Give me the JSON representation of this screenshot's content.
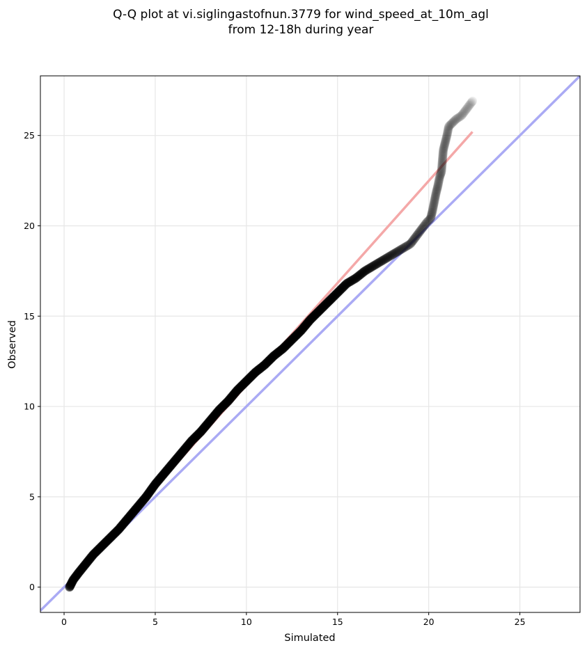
{
  "chart_data": {
    "type": "scatter",
    "title_lines": [
      "Q-Q plot at vi.siglingastofnun.3779 for wind_speed_at_10m_agl",
      "from 12-18h during year"
    ],
    "xlabel": "Simulated",
    "ylabel": "Observed",
    "xlim": [
      -1.3,
      28.3
    ],
    "ylim": [
      -1.4,
      28.3
    ],
    "xticks": [
      0,
      5,
      10,
      15,
      20,
      25
    ],
    "yticks": [
      0,
      5,
      10,
      15,
      20,
      25
    ],
    "xtick_labels": [
      "0",
      "5",
      "10",
      "15",
      "20",
      "25"
    ],
    "ytick_labels": [
      "0",
      "5",
      "10",
      "15",
      "20",
      "25"
    ],
    "grid": true,
    "reference_line": {
      "from": [
        -1.3,
        -1.3
      ],
      "to": [
        28.3,
        28.3
      ],
      "color": "#aaaaf4"
    },
    "fit_line": {
      "from": [
        0.2,
        0.1
      ],
      "to": [
        22.4,
        25.2
      ],
      "color": "#f4a8a8"
    },
    "quantiles": {
      "x": [
        0.3,
        0.35,
        0.5,
        0.8,
        1.2,
        1.6,
        2.0,
        2.5,
        3.0,
        3.5,
        4.0,
        4.5,
        5.0,
        5.5,
        6.0,
        6.5,
        7.0,
        7.5,
        8.0,
        8.5,
        9.0,
        9.5,
        10.0,
        10.5,
        11.0,
        11.5,
        12.0,
        12.5,
        13.0,
        13.5,
        14.0,
        14.5,
        15.0,
        15.5,
        16.0,
        16.5,
        17.0,
        17.5,
        18.0,
        18.5,
        19.0,
        19.3,
        19.6,
        19.9,
        20.1,
        20.2,
        20.3,
        20.4,
        20.5,
        20.6,
        20.7,
        20.8,
        20.9,
        21.0,
        21.1,
        21.5,
        21.8,
        22.4
      ],
      "y": [
        0.0,
        0.1,
        0.4,
        0.8,
        1.3,
        1.8,
        2.2,
        2.7,
        3.2,
        3.8,
        4.4,
        5.0,
        5.7,
        6.3,
        6.9,
        7.5,
        8.1,
        8.6,
        9.2,
        9.8,
        10.3,
        10.9,
        11.4,
        11.9,
        12.3,
        12.8,
        13.2,
        13.7,
        14.2,
        14.8,
        15.3,
        15.8,
        16.3,
        16.8,
        17.1,
        17.5,
        17.8,
        18.1,
        18.4,
        18.7,
        19.0,
        19.4,
        19.8,
        20.2,
        20.4,
        20.8,
        21.3,
        21.8,
        22.2,
        22.7,
        23.0,
        24.2,
        24.6,
        25.0,
        25.5,
        25.9,
        26.1,
        26.9
      ]
    }
  }
}
